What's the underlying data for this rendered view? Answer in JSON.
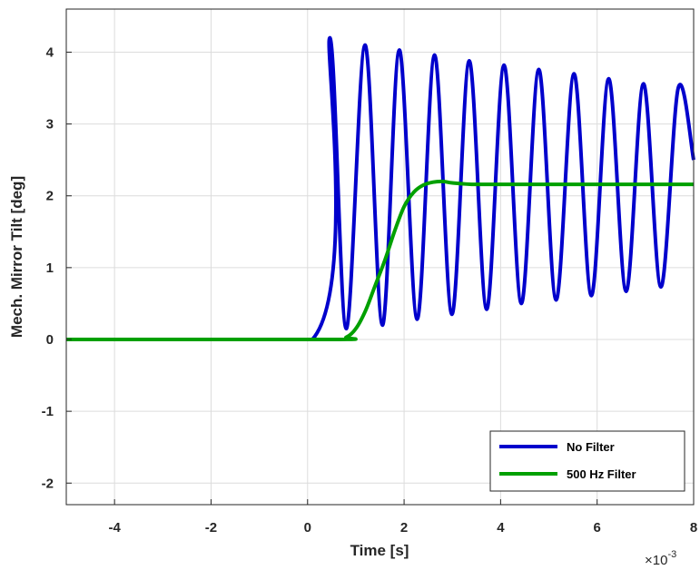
{
  "chart_data": {
    "type": "line",
    "xlabel": "Time [s]",
    "ylabel": "Mech. Mirror Tilt [deg]",
    "x_exponent_label": "×10",
    "x_exponent_power": "-3",
    "x_scale": 0.001,
    "xlim": [
      -5,
      8
    ],
    "ylim": [
      -2.3,
      4.6
    ],
    "xticks": [
      -4,
      -2,
      0,
      2,
      4,
      6,
      8
    ],
    "yticks": [
      -2,
      -1,
      0,
      1,
      2,
      3,
      4
    ],
    "xtick_labels": [
      "-4",
      "-2",
      "0",
      "2",
      "4",
      "6",
      "8"
    ],
    "ytick_labels": [
      "-2",
      "-1",
      "0",
      "1",
      "2",
      "3",
      "4"
    ],
    "grid": true,
    "legend_position": "bottom-right",
    "series": [
      {
        "name": "No Filter",
        "color": "#0000CC",
        "x": [
          -5.0,
          0.1,
          0.46,
          0.8,
          1.19,
          1.55,
          1.9,
          2.27,
          2.63,
          2.99,
          3.35,
          3.71,
          4.07,
          4.43,
          4.79,
          5.15,
          5.52,
          5.88,
          6.24,
          6.6,
          6.96,
          7.32,
          7.68,
          8.0
        ],
        "y": [
          0.0,
          0.0,
          4.2,
          0.15,
          4.1,
          0.2,
          4.03,
          0.28,
          3.96,
          0.35,
          3.88,
          0.42,
          3.82,
          0.5,
          3.76,
          0.55,
          3.7,
          0.61,
          3.63,
          0.67,
          3.56,
          0.73,
          3.5,
          2.5
        ]
      },
      {
        "name": "500 Hz Filter",
        "color": "#00A000",
        "x": [
          -5.0,
          0.5,
          0.8,
          1.0,
          1.2,
          1.4,
          1.6,
          1.8,
          2.0,
          2.2,
          2.4,
          2.6,
          2.8,
          3.0,
          3.4,
          4.0,
          5.0,
          6.0,
          7.0,
          8.0
        ],
        "y": [
          0.0,
          0.0,
          0.03,
          0.15,
          0.4,
          0.75,
          1.1,
          1.5,
          1.85,
          2.05,
          2.15,
          2.19,
          2.2,
          2.18,
          2.16,
          2.16,
          2.16,
          2.16,
          2.16,
          2.16
        ]
      }
    ]
  }
}
